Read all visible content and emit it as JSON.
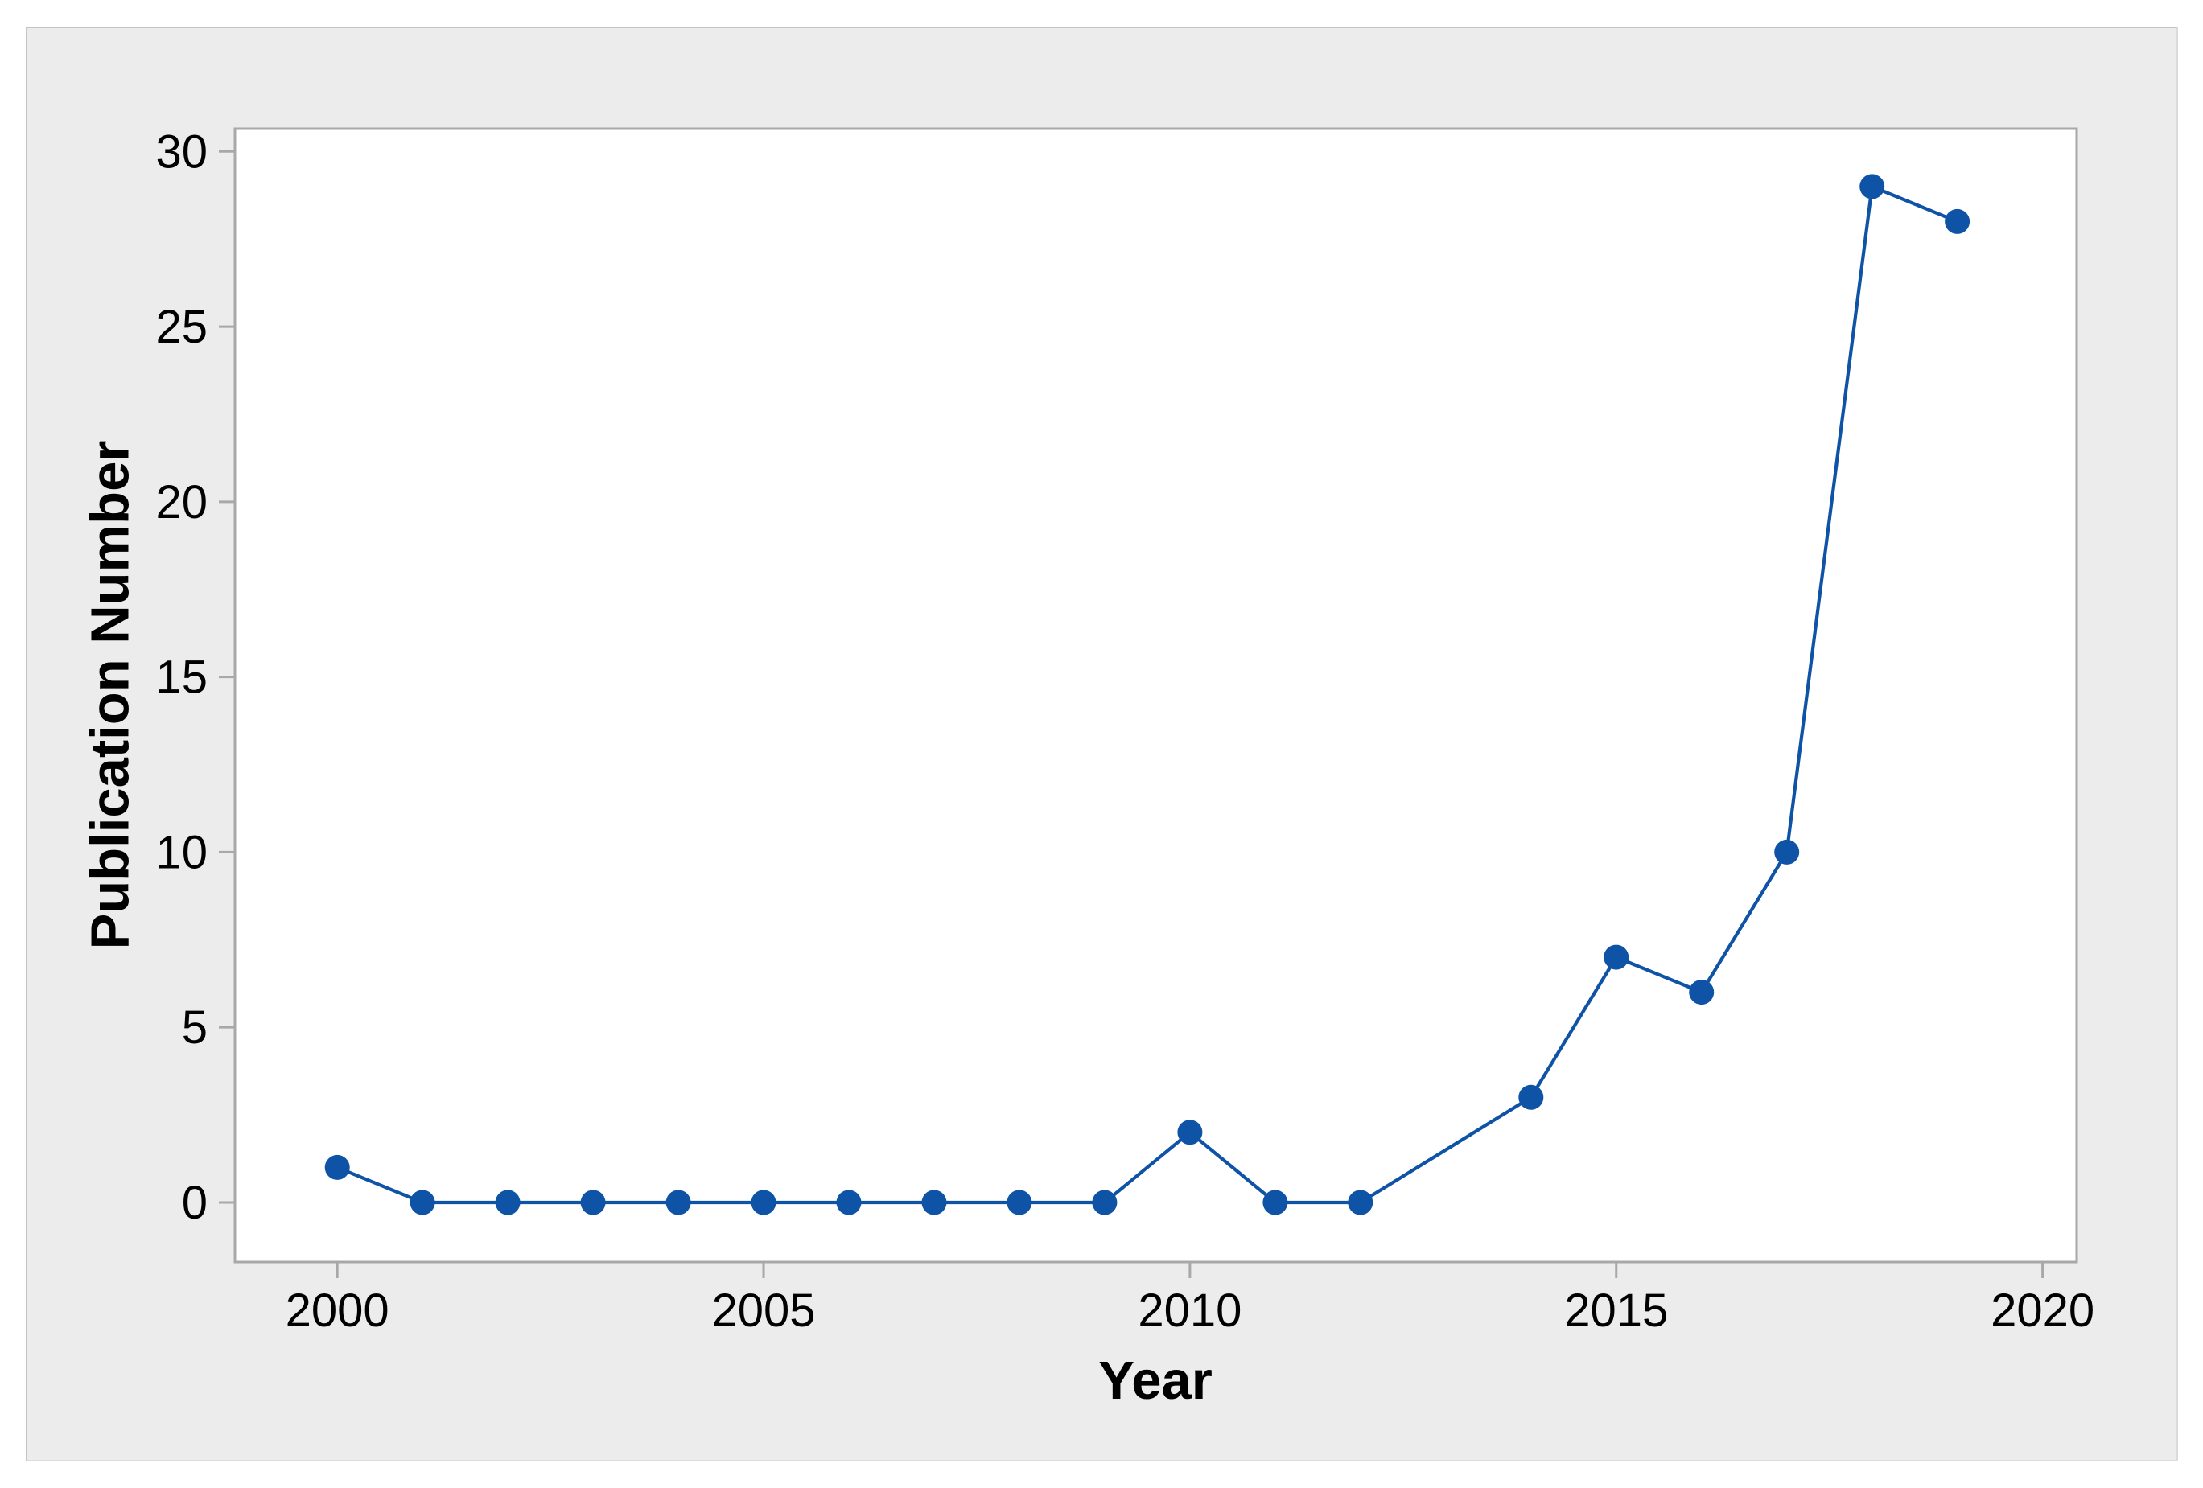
{
  "figure": {
    "background_color": "#FFFFFF",
    "panel_color": "#ECECEC",
    "plot_background_color": "#FFFFFF",
    "plot_border_color": "#A8A8A8",
    "tick_mark_color": "#A8A8A8",
    "text_color": "#000000"
  },
  "chart_data": {
    "type": "line",
    "title": "",
    "xlabel": "Year",
    "ylabel": "Publication Number",
    "series": [
      {
        "name": "Publication Number",
        "color": "#0E53A6",
        "points": [
          {
            "year": 2000,
            "value": 1
          },
          {
            "year": 2001,
            "value": 0
          },
          {
            "year": 2002,
            "value": 0
          },
          {
            "year": 2003,
            "value": 0
          },
          {
            "year": 2004,
            "value": 0
          },
          {
            "year": 2005,
            "value": 0
          },
          {
            "year": 2006,
            "value": 0
          },
          {
            "year": 2007,
            "value": 0
          },
          {
            "year": 2008,
            "value": 0
          },
          {
            "year": 2009,
            "value": 0
          },
          {
            "year": 2010,
            "value": 2
          },
          {
            "year": 2011,
            "value": 0
          },
          {
            "year": 2012,
            "value": 0
          },
          {
            "year": 2014,
            "value": 3
          },
          {
            "year": 2015,
            "value": 7
          },
          {
            "year": 2016,
            "value": 6
          },
          {
            "year": 2017,
            "value": 10
          },
          {
            "year": 2018,
            "value": 29
          },
          {
            "year": 2019,
            "value": 28
          }
        ]
      }
    ],
    "xticks": [
      2000,
      2005,
      2010,
      2015,
      2020
    ],
    "yticks": [
      0,
      5,
      10,
      15,
      20,
      25,
      30
    ],
    "xlim": [
      1998.8,
      2020.4
    ],
    "ylim": [
      -1.7,
      30.65
    ],
    "grid": false,
    "legend": "none",
    "marker": "circle"
  }
}
